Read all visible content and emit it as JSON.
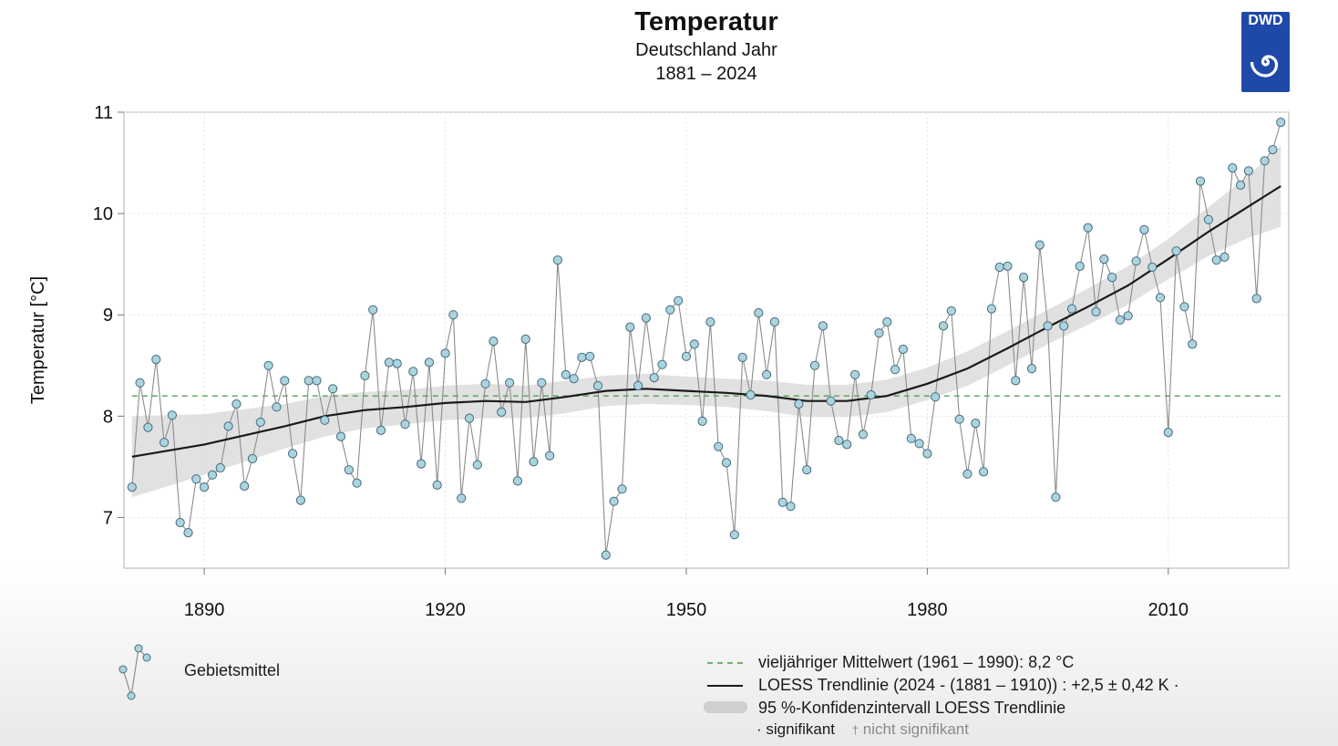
{
  "header": {
    "title": "Temperatur",
    "subtitle": "Deutschland Jahr",
    "period": "1881 – 2024",
    "logo_text": "DWD"
  },
  "colors": {
    "points_fill": "#a9d4e0",
    "points_stroke": "#4a6a78",
    "connector": "#8c8c8c",
    "trend": "#1a1a1a",
    "band": "#dcdcdc",
    "mean_line": "#3f9e3f",
    "logo_bg": "#1f49a8"
  },
  "chart_data": {
    "type": "line",
    "ylabel": "Temperatur [°C]",
    "xlim": [
      1880,
      2025
    ],
    "ylim": [
      6.5,
      11
    ],
    "x_ticks": [
      1890,
      1920,
      1950,
      1980,
      2010
    ],
    "y_ticks": [
      7,
      8,
      9,
      10,
      11
    ],
    "grid": true,
    "legend_placement": "bottom",
    "reference_line": {
      "name": "vieljähriger Mittelwert (1961 – 1990): 8,2 °C",
      "value": 8.2
    },
    "series": [
      {
        "name": "Gebietsmittel",
        "x": [
          1881,
          1882,
          1883,
          1884,
          1885,
          1886,
          1887,
          1888,
          1889,
          1890,
          1891,
          1892,
          1893,
          1894,
          1895,
          1896,
          1897,
          1898,
          1899,
          1900,
          1901,
          1902,
          1903,
          1904,
          1905,
          1906,
          1907,
          1908,
          1909,
          1910,
          1911,
          1912,
          1913,
          1914,
          1915,
          1916,
          1917,
          1918,
          1919,
          1920,
          1921,
          1922,
          1923,
          1924,
          1925,
          1926,
          1927,
          1928,
          1929,
          1930,
          1931,
          1932,
          1933,
          1934,
          1935,
          1936,
          1937,
          1938,
          1939,
          1940,
          1941,
          1942,
          1943,
          1944,
          1945,
          1946,
          1947,
          1948,
          1949,
          1950,
          1951,
          1952,
          1953,
          1954,
          1955,
          1956,
          1957,
          1958,
          1959,
          1960,
          1961,
          1962,
          1963,
          1964,
          1965,
          1966,
          1967,
          1968,
          1969,
          1970,
          1971,
          1972,
          1973,
          1974,
          1975,
          1976,
          1977,
          1978,
          1979,
          1980,
          1981,
          1982,
          1983,
          1984,
          1985,
          1986,
          1987,
          1988,
          1989,
          1990,
          1991,
          1992,
          1993,
          1994,
          1995,
          1996,
          1997,
          1998,
          1999,
          2000,
          2001,
          2002,
          2003,
          2004,
          2005,
          2006,
          2007,
          2008,
          2009,
          2010,
          2011,
          2012,
          2013,
          2014,
          2015,
          2016,
          2017,
          2018,
          2019,
          2020,
          2021,
          2022,
          2023,
          2024
        ],
        "values": [
          7.3,
          8.33,
          7.89,
          8.56,
          7.74,
          8.01,
          6.95,
          6.85,
          7.38,
          7.3,
          7.42,
          7.49,
          7.9,
          8.12,
          7.31,
          7.58,
          7.94,
          8.5,
          8.09,
          8.35,
          7.63,
          7.17,
          8.35,
          8.35,
          7.96,
          8.27,
          7.8,
          7.47,
          7.34,
          8.4,
          9.05,
          7.86,
          8.53,
          8.52,
          7.92,
          8.44,
          7.53,
          8.53,
          7.32,
          8.62,
          9.0,
          7.19,
          7.98,
          7.52,
          8.32,
          8.74,
          8.04,
          8.33,
          7.36,
          8.76,
          7.55,
          8.33,
          7.61,
          9.54,
          8.41,
          8.37,
          8.58,
          8.59,
          8.3,
          6.63,
          7.16,
          7.28,
          8.88,
          8.3,
          8.97,
          8.38,
          8.51,
          9.05,
          9.14,
          8.59,
          8.71,
          7.95,
          8.93,
          7.7,
          7.54,
          6.83,
          8.58,
          8.21,
          9.02,
          8.41,
          8.93,
          7.15,
          7.11,
          8.12,
          7.47,
          8.5,
          8.89,
          8.15,
          7.76,
          7.72,
          8.41,
          7.82,
          8.21,
          8.82,
          8.93,
          8.46,
          8.66,
          7.78,
          7.73,
          7.63,
          8.19,
          8.89,
          9.04,
          7.97,
          7.43,
          7.93,
          7.45,
          9.06,
          9.47,
          9.48,
          8.35,
          9.37,
          8.47,
          9.69,
          8.89,
          7.2,
          8.89,
          9.06,
          9.48,
          9.86,
          9.03,
          9.55,
          9.37,
          8.95,
          8.99,
          9.53,
          9.84,
          9.47,
          9.17,
          7.84,
          9.63,
          9.08,
          8.71,
          10.32,
          9.94,
          9.54,
          9.57,
          10.45,
          10.28,
          10.42,
          9.16,
          10.52,
          10.63,
          10.9
        ]
      },
      {
        "name": "LOESS Trendlinie (2024 - (1881 – 1910)) : +2,5 ± 0,42 K",
        "x": [
          1881,
          1890,
          1900,
          1905,
          1910,
          1915,
          1920,
          1925,
          1930,
          1935,
          1940,
          1945,
          1950,
          1955,
          1960,
          1965,
          1970,
          1975,
          1980,
          1985,
          1990,
          1995,
          2000,
          2005,
          2010,
          2015,
          2020,
          2024
        ],
        "values": [
          7.6,
          7.72,
          7.9,
          8.0,
          8.06,
          8.09,
          8.13,
          8.15,
          8.14,
          8.19,
          8.25,
          8.27,
          8.25,
          8.23,
          8.2,
          8.15,
          8.15,
          8.2,
          8.32,
          8.47,
          8.67,
          8.88,
          9.08,
          9.29,
          9.55,
          9.82,
          10.07,
          10.27
        ],
        "band_lower": [
          7.2,
          7.42,
          7.68,
          7.8,
          7.88,
          7.92,
          7.96,
          7.98,
          7.98,
          8.03,
          8.1,
          8.12,
          8.11,
          8.09,
          8.05,
          7.99,
          7.99,
          8.04,
          8.16,
          8.3,
          8.5,
          8.71,
          8.9,
          9.1,
          9.35,
          9.58,
          9.76,
          9.87
        ],
        "band_upper": [
          8.0,
          8.02,
          8.12,
          8.2,
          8.24,
          8.26,
          8.3,
          8.32,
          8.3,
          8.35,
          8.4,
          8.42,
          8.39,
          8.37,
          8.35,
          8.31,
          8.31,
          8.36,
          8.48,
          8.64,
          8.84,
          9.05,
          9.26,
          9.48,
          9.75,
          10.06,
          10.38,
          10.67
        ]
      }
    ]
  },
  "legend": {
    "points_label": "Gebietsmittel",
    "mean_label": "vieljähriger Mittelwert (1961 – 1990): 8,2 °C",
    "trend_label": "LOESS Trendlinie (2024 - (1881 – 1910)) : +2,5 ± 0,42 K",
    "trend_suffix": "·",
    "band_label": "95 %-Konfidenzintervall LOESS Trendlinie",
    "sig_mark": "·",
    "sig_label": "signifikant",
    "nonsig_mark": "†",
    "nonsig_label": "nicht signifikant"
  }
}
